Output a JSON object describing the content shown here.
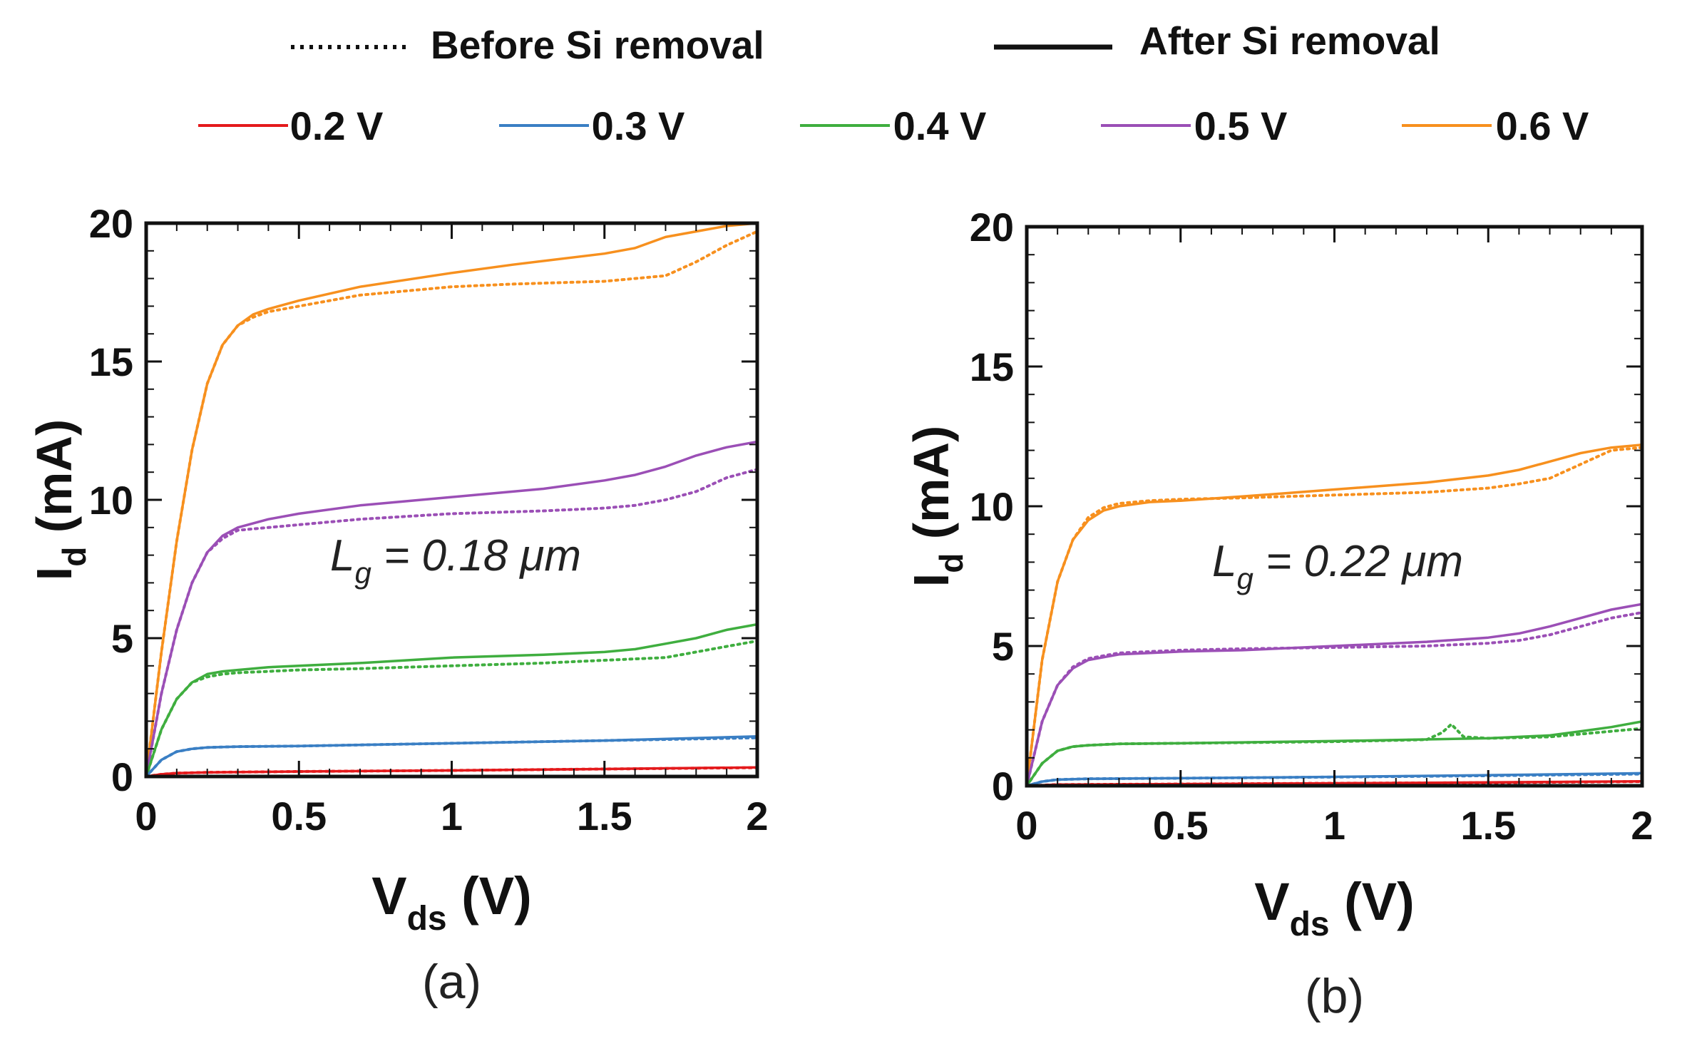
{
  "legend": {
    "line_styles": [
      {
        "label": "Before Si removal",
        "style": "dotted"
      },
      {
        "label": "After Si removal",
        "style": "solid"
      }
    ],
    "gate_voltages": [
      {
        "label": "0.2 V",
        "color": "#e41a1c"
      },
      {
        "label": "0.3 V",
        "color": "#3a7fc4"
      },
      {
        "label": "0.4 V",
        "color": "#3fae3f"
      },
      {
        "label": "0.5 V",
        "color": "#9b4fb6"
      },
      {
        "label": "0.6 V",
        "color": "#f7901e"
      }
    ]
  },
  "chart_data": [
    {
      "type": "line",
      "panel_label": "(a)",
      "annotation": {
        "main": "L",
        "sub": "g",
        "rest": " = 0.18 μm"
      },
      "xlabel": {
        "main": "V",
        "sub": "ds",
        "rest": " (V)"
      },
      "ylabel": {
        "main": "I",
        "sub": "d",
        "rest": " (mA)"
      },
      "xlim": [
        0,
        2
      ],
      "ylim": [
        0,
        20
      ],
      "xticks": [
        "0",
        "0.5",
        "1",
        "1.5",
        "2"
      ],
      "yticks": [
        "0",
        "5",
        "10",
        "15",
        "20"
      ],
      "series": [
        {
          "name": "0.6 V",
          "style": "solid",
          "color": "#f7901e",
          "x": [
            0,
            0.05,
            0.1,
            0.15,
            0.2,
            0.25,
            0.3,
            0.35,
            0.4,
            0.5,
            0.7,
            1.0,
            1.2,
            1.5,
            1.6,
            1.7,
            1.8,
            1.9,
            2.0
          ],
          "y": [
            0,
            4.5,
            8.5,
            11.8,
            14.2,
            15.6,
            16.3,
            16.7,
            16.9,
            17.2,
            17.7,
            18.2,
            18.5,
            18.9,
            19.1,
            19.5,
            19.7,
            19.9,
            20.0
          ]
        },
        {
          "name": "0.6 V",
          "style": "dotted",
          "color": "#f7901e",
          "x": [
            0,
            0.05,
            0.1,
            0.15,
            0.2,
            0.25,
            0.3,
            0.35,
            0.4,
            0.5,
            0.7,
            1.0,
            1.2,
            1.5,
            1.6,
            1.7,
            1.8,
            1.9,
            2.0
          ],
          "y": [
            0,
            4.5,
            8.5,
            11.8,
            14.2,
            15.6,
            16.3,
            16.6,
            16.8,
            17.0,
            17.4,
            17.7,
            17.8,
            17.9,
            18.0,
            18.1,
            18.6,
            19.2,
            19.7
          ]
        },
        {
          "name": "0.5 V",
          "style": "solid",
          "color": "#9b4fb6",
          "x": [
            0,
            0.05,
            0.1,
            0.15,
            0.2,
            0.25,
            0.3,
            0.4,
            0.5,
            0.7,
            1.0,
            1.3,
            1.5,
            1.6,
            1.7,
            1.8,
            1.9,
            2.0
          ],
          "y": [
            0,
            3.0,
            5.3,
            7.0,
            8.1,
            8.7,
            9.0,
            9.3,
            9.5,
            9.8,
            10.1,
            10.4,
            10.7,
            10.9,
            11.2,
            11.6,
            11.9,
            12.1
          ]
        },
        {
          "name": "0.5 V",
          "style": "dotted",
          "color": "#9b4fb6",
          "x": [
            0,
            0.05,
            0.1,
            0.15,
            0.2,
            0.25,
            0.3,
            0.4,
            0.5,
            0.7,
            1.0,
            1.3,
            1.5,
            1.6,
            1.7,
            1.8,
            1.9,
            2.0
          ],
          "y": [
            0,
            3.0,
            5.3,
            7.0,
            8.1,
            8.6,
            8.9,
            9.0,
            9.1,
            9.3,
            9.5,
            9.6,
            9.7,
            9.8,
            10.0,
            10.3,
            10.8,
            11.1
          ]
        },
        {
          "name": "0.4 V",
          "style": "solid",
          "color": "#3fae3f",
          "x": [
            0,
            0.05,
            0.1,
            0.15,
            0.2,
            0.25,
            0.3,
            0.4,
            0.5,
            0.7,
            1.0,
            1.3,
            1.5,
            1.6,
            1.7,
            1.8,
            1.9,
            2.0
          ],
          "y": [
            0,
            1.7,
            2.8,
            3.4,
            3.7,
            3.8,
            3.85,
            3.95,
            4.0,
            4.1,
            4.3,
            4.4,
            4.5,
            4.6,
            4.8,
            5.0,
            5.3,
            5.5
          ]
        },
        {
          "name": "0.4 V",
          "style": "dotted",
          "color": "#3fae3f",
          "x": [
            0,
            0.05,
            0.1,
            0.15,
            0.2,
            0.25,
            0.3,
            0.4,
            0.5,
            0.7,
            1.0,
            1.3,
            1.5,
            1.6,
            1.7,
            1.8,
            1.9,
            2.0
          ],
          "y": [
            0,
            1.7,
            2.8,
            3.4,
            3.6,
            3.7,
            3.75,
            3.8,
            3.85,
            3.9,
            4.0,
            4.1,
            4.2,
            4.25,
            4.3,
            4.5,
            4.7,
            4.9
          ]
        },
        {
          "name": "0.3 V",
          "style": "solid",
          "color": "#3a7fc4",
          "x": [
            0,
            0.05,
            0.1,
            0.15,
            0.2,
            0.3,
            0.5,
            1.0,
            1.5,
            2.0
          ],
          "y": [
            0,
            0.6,
            0.9,
            1.0,
            1.05,
            1.08,
            1.1,
            1.2,
            1.3,
            1.45
          ]
        },
        {
          "name": "0.3 V",
          "style": "dotted",
          "color": "#3a7fc4",
          "x": [
            0,
            0.05,
            0.1,
            0.15,
            0.2,
            0.3,
            0.5,
            1.0,
            1.5,
            2.0
          ],
          "y": [
            0,
            0.6,
            0.9,
            1.0,
            1.05,
            1.08,
            1.1,
            1.2,
            1.3,
            1.4
          ]
        },
        {
          "name": "0.2 V",
          "style": "solid",
          "color": "#e41a1c",
          "x": [
            0,
            0.05,
            0.1,
            0.2,
            0.5,
            1.0,
            1.5,
            2.0
          ],
          "y": [
            0,
            0.08,
            0.12,
            0.15,
            0.18,
            0.22,
            0.27,
            0.33
          ]
        },
        {
          "name": "0.2 V",
          "style": "dotted",
          "color": "#e41a1c",
          "x": [
            0,
            0.05,
            0.1,
            0.2,
            0.5,
            1.0,
            1.5,
            2.0
          ],
          "y": [
            0,
            0.08,
            0.12,
            0.15,
            0.18,
            0.22,
            0.27,
            0.32
          ]
        }
      ]
    },
    {
      "type": "line",
      "panel_label": "(b)",
      "annotation": {
        "main": "L",
        "sub": "g",
        "rest": " = 0.22 μm"
      },
      "xlabel": {
        "main": "V",
        "sub": "ds",
        "rest": " (V)"
      },
      "ylabel": {
        "main": "I",
        "sub": "d",
        "rest": " (mA)"
      },
      "xlim": [
        0,
        2
      ],
      "ylim": [
        0,
        20
      ],
      "xticks": [
        "0",
        "0.5",
        "1",
        "1.5",
        "2"
      ],
      "yticks": [
        "0",
        "5",
        "10",
        "15",
        "20"
      ],
      "series": [
        {
          "name": "0.6 V",
          "style": "solid",
          "color": "#f7901e",
          "x": [
            0,
            0.05,
            0.1,
            0.15,
            0.2,
            0.25,
            0.3,
            0.4,
            0.5,
            0.7,
            1.0,
            1.3,
            1.5,
            1.6,
            1.7,
            1.8,
            1.9,
            2.0
          ],
          "y": [
            0,
            4.5,
            7.3,
            8.8,
            9.5,
            9.85,
            10.0,
            10.15,
            10.2,
            10.35,
            10.6,
            10.85,
            11.1,
            11.3,
            11.6,
            11.9,
            12.1,
            12.2
          ]
        },
        {
          "name": "0.6 V",
          "style": "dotted",
          "color": "#f7901e",
          "x": [
            0,
            0.05,
            0.1,
            0.15,
            0.2,
            0.25,
            0.3,
            0.4,
            0.5,
            0.7,
            1.0,
            1.3,
            1.5,
            1.6,
            1.7,
            1.8,
            1.9,
            2.0
          ],
          "y": [
            0,
            4.5,
            7.3,
            8.8,
            9.6,
            9.95,
            10.1,
            10.2,
            10.25,
            10.3,
            10.4,
            10.5,
            10.65,
            10.8,
            11.0,
            11.5,
            12.0,
            12.1
          ]
        },
        {
          "name": "0.5 V",
          "style": "solid",
          "color": "#9b4fb6",
          "x": [
            0,
            0.05,
            0.1,
            0.15,
            0.2,
            0.3,
            0.5,
            0.7,
            1.0,
            1.3,
            1.5,
            1.6,
            1.7,
            1.8,
            1.9,
            2.0
          ],
          "y": [
            0,
            2.3,
            3.6,
            4.2,
            4.5,
            4.7,
            4.8,
            4.85,
            5.0,
            5.15,
            5.3,
            5.45,
            5.7,
            6.0,
            6.3,
            6.5
          ]
        },
        {
          "name": "0.5 V",
          "style": "dotted",
          "color": "#9b4fb6",
          "x": [
            0,
            0.05,
            0.1,
            0.15,
            0.2,
            0.3,
            0.5,
            0.7,
            1.0,
            1.3,
            1.5,
            1.6,
            1.7,
            1.8,
            1.9,
            2.0
          ],
          "y": [
            0,
            2.3,
            3.6,
            4.25,
            4.55,
            4.75,
            4.85,
            4.9,
            4.95,
            5.0,
            5.1,
            5.2,
            5.4,
            5.7,
            6.0,
            6.2
          ]
        },
        {
          "name": "0.4 V",
          "style": "solid",
          "color": "#3fae3f",
          "x": [
            0,
            0.05,
            0.1,
            0.15,
            0.2,
            0.3,
            0.5,
            1.0,
            1.5,
            1.7,
            1.8,
            1.9,
            2.0
          ],
          "y": [
            0,
            0.8,
            1.25,
            1.4,
            1.45,
            1.5,
            1.52,
            1.6,
            1.7,
            1.8,
            1.95,
            2.1,
            2.3
          ]
        },
        {
          "name": "0.4 V",
          "style": "dotted",
          "color": "#3fae3f",
          "x": [
            0,
            0.05,
            0.1,
            0.15,
            0.2,
            0.3,
            0.5,
            1.0,
            1.3,
            1.35,
            1.38,
            1.42,
            1.5,
            1.7,
            1.8,
            1.9,
            2.0
          ],
          "y": [
            0,
            0.8,
            1.25,
            1.4,
            1.45,
            1.5,
            1.52,
            1.58,
            1.65,
            1.9,
            2.2,
            1.75,
            1.7,
            1.75,
            1.85,
            1.95,
            2.05
          ]
        },
        {
          "name": "0.3 V",
          "style": "solid",
          "color": "#3a7fc4",
          "x": [
            0,
            0.05,
            0.1,
            0.2,
            0.5,
            1.0,
            1.5,
            2.0
          ],
          "y": [
            0,
            0.15,
            0.22,
            0.25,
            0.27,
            0.32,
            0.38,
            0.45
          ]
        },
        {
          "name": "0.3 V",
          "style": "dotted",
          "color": "#3a7fc4",
          "x": [
            0,
            0.05,
            0.1,
            0.2,
            0.5,
            1.0,
            1.5,
            2.0
          ],
          "y": [
            0,
            0.15,
            0.22,
            0.25,
            0.27,
            0.31,
            0.36,
            0.42
          ]
        },
        {
          "name": "0.2 V",
          "style": "solid",
          "color": "#e41a1c",
          "x": [
            0,
            0.1,
            0.5,
            1.0,
            1.5,
            2.0
          ],
          "y": [
            0,
            0.04,
            0.06,
            0.09,
            0.12,
            0.16
          ]
        },
        {
          "name": "0.2 V",
          "style": "dotted",
          "color": "#e41a1c",
          "x": [
            0,
            0.1,
            0.5,
            1.0,
            1.5,
            2.0
          ],
          "y": [
            0,
            0.04,
            0.06,
            0.09,
            0.11,
            0.15
          ]
        }
      ]
    }
  ]
}
